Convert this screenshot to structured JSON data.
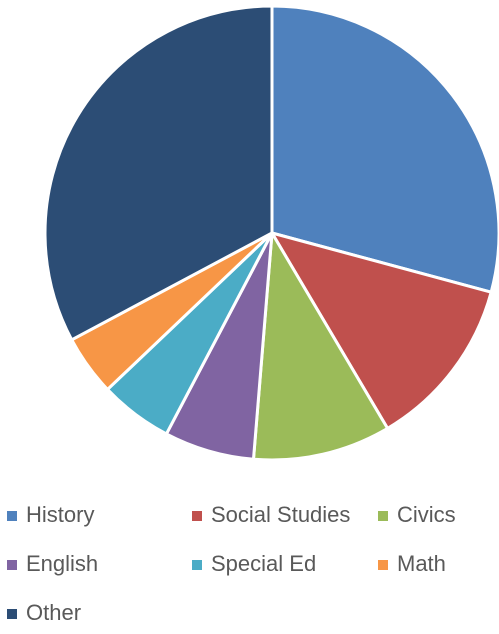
{
  "chart_data": {
    "type": "pie",
    "categories": [
      "History",
      "Social Studies",
      "Civics",
      "English",
      "Special Ed",
      "Math",
      "Other"
    ],
    "values": [
      29.2,
      12.3,
      9.8,
      6.4,
      5.2,
      4.3,
      32.8
    ],
    "colors": [
      "#4f81bd",
      "#c0504d",
      "#9bbb59",
      "#8064a2",
      "#4bacc6",
      "#f79646",
      "#2c4d75"
    ],
    "legend": "bottom"
  }
}
